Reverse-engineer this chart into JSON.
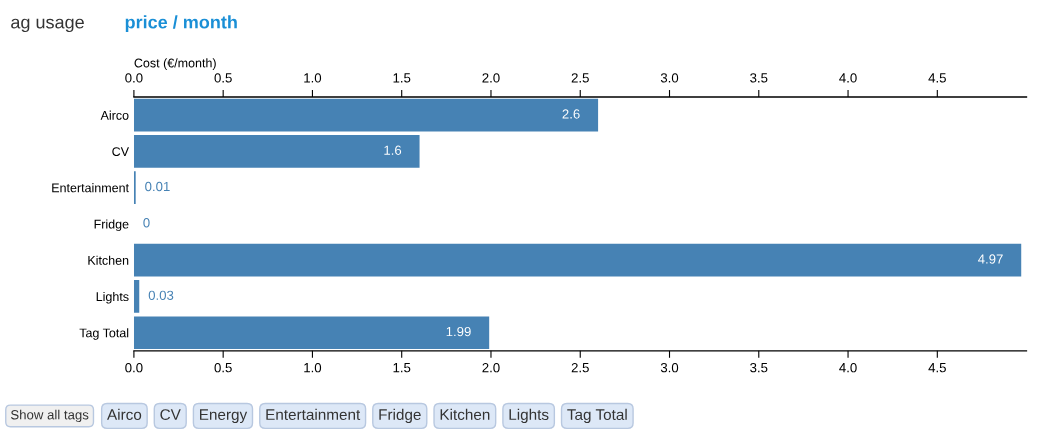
{
  "chart_data": {
    "type": "bar",
    "orientation": "horizontal",
    "title": "ag usage",
    "subtitle": "price / month",
    "x2label": "Cost (€/month)",
    "categories": [
      "Airco",
      "CV",
      "Entertainment",
      "Fridge",
      "Kitchen",
      "Lights",
      "Tag Total"
    ],
    "values": [
      2.6,
      1.6,
      0.01,
      0,
      4.97,
      0.03,
      1.99
    ],
    "color": "#4682b4",
    "data_labels": true,
    "xlim": [
      0,
      5
    ],
    "xticks": [
      {
        "value": 0,
        "label": "0.0"
      },
      {
        "value": 0.5,
        "label": "0.5"
      },
      {
        "value": 1,
        "label": "1.0"
      },
      {
        "value": 1.5,
        "label": "1.5"
      },
      {
        "value": 2,
        "label": "2.0"
      },
      {
        "value": 2.5,
        "label": "2.5"
      },
      {
        "value": 3,
        "label": "3.0"
      },
      {
        "value": 3.5,
        "label": "3.5"
      },
      {
        "value": 4,
        "label": "4.0"
      },
      {
        "value": 4.5,
        "label": "4.5"
      }
    ],
    "x2lim": [
      0,
      5
    ],
    "x2ticks": [
      {
        "value": 0,
        "label": "0.0"
      },
      {
        "value": 0.5,
        "label": "0.5"
      },
      {
        "value": 1,
        "label": "1.0"
      },
      {
        "value": 1.5,
        "label": "1.5"
      },
      {
        "value": 2,
        "label": "2.0"
      },
      {
        "value": 2.5,
        "label": "2.5"
      },
      {
        "value": 3,
        "label": "3.0"
      },
      {
        "value": 3.5,
        "label": "3.5"
      },
      {
        "value": 4,
        "label": "4.0"
      },
      {
        "value": 4.5,
        "label": "4.5"
      }
    ],
    "grid": false,
    "annotations": [
      "Show all tags",
      "Airco",
      "CV",
      "Energy",
      "Entertainment",
      "Fridge",
      "Kitchen",
      "Lights",
      "Tag Total"
    ]
  }
}
